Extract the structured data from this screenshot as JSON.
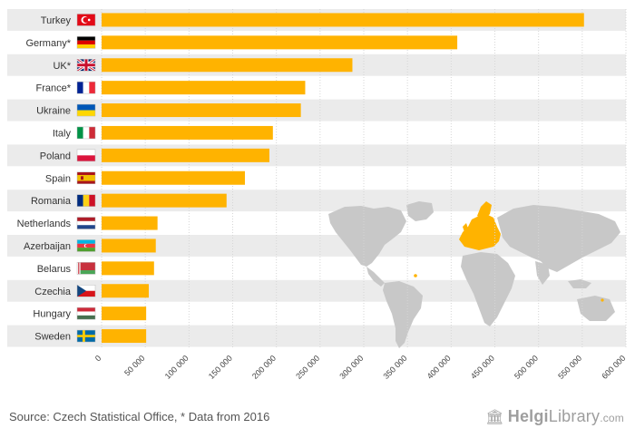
{
  "chart_data": {
    "type": "bar",
    "orientation": "horizontal",
    "categories": [
      "Turkey",
      "Germany*",
      "UK*",
      "France*",
      "Ukraine",
      "Italy",
      "Poland",
      "Spain",
      "Romania",
      "Netherlands",
      "Azerbaijan",
      "Belarus",
      "Czechia",
      "Hungary",
      "Sweden"
    ],
    "flags": [
      "turkey-flag",
      "germany-flag",
      "uk-flag",
      "france-flag",
      "ukraine-flag",
      "italy-flag",
      "poland-flag",
      "spain-flag",
      "romania-flag",
      "netherlands-flag",
      "azerbaijan-flag",
      "belarus-flag",
      "czechia-flag",
      "hungary-flag",
      "sweden-flag"
    ],
    "values": [
      552000,
      407000,
      287000,
      233000,
      228000,
      196000,
      192000,
      164000,
      143000,
      64000,
      62000,
      60000,
      54000,
      51000,
      51000
    ],
    "xlim": [
      0,
      600000
    ],
    "xticks": [
      0,
      50000,
      100000,
      150000,
      200000,
      250000,
      300000,
      350000,
      400000,
      450000,
      500000,
      550000,
      600000
    ],
    "xtick_labels": [
      "0",
      "50 000",
      "100 000",
      "150 000",
      "200 000",
      "250 000",
      "300 000",
      "350 000",
      "400 000",
      "450 000",
      "500 000",
      "550 000",
      "600 000"
    ],
    "grid": true,
    "title": "",
    "xlabel": "",
    "ylabel": "",
    "bar_color": "#FFB300",
    "row_band_color": "#EBEBEB",
    "map_land_color": "#C8C8C8",
    "map_highlight_color": "#FFB300"
  },
  "footer": {
    "source": "Source: Czech Statistical Office, * Data from 2016",
    "brand_bold": "Helgi",
    "brand_rest": "Library",
    "brand_tld": ".com"
  }
}
